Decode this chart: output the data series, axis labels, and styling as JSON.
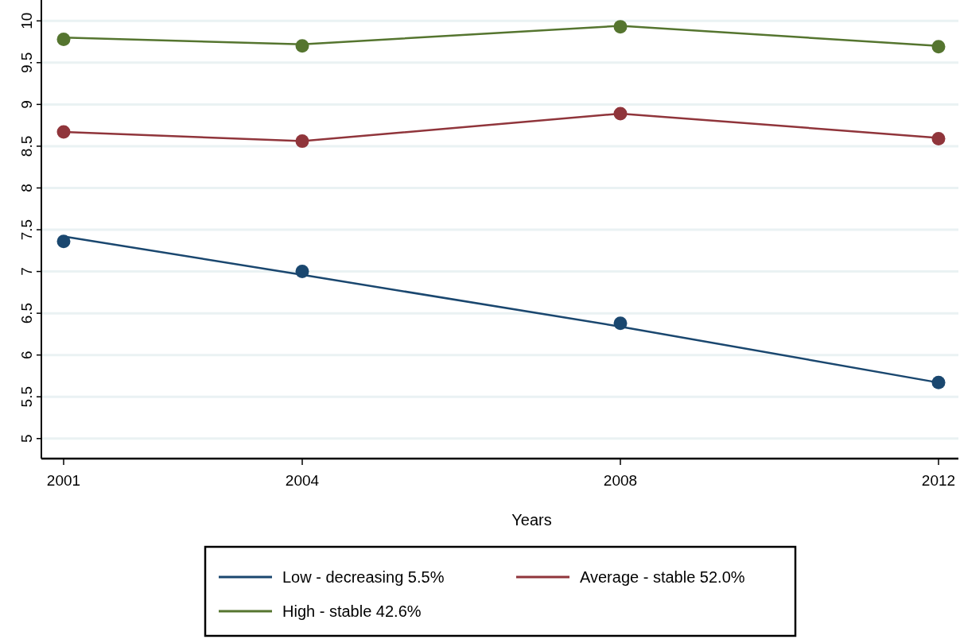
{
  "chart_data": {
    "type": "line",
    "xlabel": "Years",
    "x": [
      2001,
      2004,
      2008,
      2012
    ],
    "xlim": [
      2000.72,
      2012.25
    ],
    "xticks": [
      2001,
      2004,
      2008,
      2012
    ],
    "ylim": [
      4.76,
      10.25
    ],
    "yticks": [
      5,
      5.5,
      6,
      6.5,
      7,
      7.5,
      8,
      8.5,
      9,
      9.5,
      10
    ],
    "grid": "y",
    "legend": "bottom",
    "marker": "circle",
    "line_style": "solid",
    "series": [
      {
        "name": "Low - decreasing 5.5%",
        "marker": "none",
        "color": "#1a476f",
        "values": [
          7.42,
          6.96,
          6.34,
          5.67
        ]
      },
      {
        "name": "Average - stable 52.0%",
        "marker": "none",
        "color": "#90353b",
        "values": [
          8.67,
          8.56,
          8.89,
          8.6
        ]
      },
      {
        "name": "High - stable 42.6%",
        "marker": "none",
        "color": "#55752f",
        "values": [
          9.8,
          9.72,
          9.94,
          9.7
        ]
      },
      {
        "type": "scatter",
        "color": "#1a476f",
        "values": [
          7.36,
          7.0,
          6.38,
          5.67
        ]
      },
      {
        "type": "scatter",
        "color": "#90353b",
        "values": [
          8.67,
          8.56,
          8.89,
          8.59
        ]
      },
      {
        "type": "scatter",
        "color": "#55752f",
        "values": [
          9.78,
          9.7,
          9.93,
          9.69
        ]
      }
    ]
  }
}
